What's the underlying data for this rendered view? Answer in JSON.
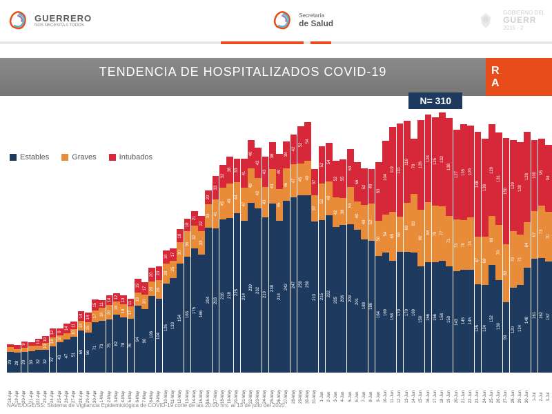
{
  "header": {
    "guerrero_name": "GUERRERO",
    "guerrero_tag": "NOS NECESITA A TODOS",
    "salud_small": "Secretaría",
    "salud_big": "de Salud",
    "gov_small": "GOBIERNO DEL",
    "gov_big": "GUERR",
    "gov_years": "2015 - 2"
  },
  "title": "TENDENCIA DE HOSPITALIZADOS COVID-19",
  "side_label_1": "R",
  "side_label_2": "A",
  "n_label": "N= 310",
  "legend": {
    "estables": "Estables",
    "graves": "Graves",
    "intubados": "Intubados"
  },
  "colors": {
    "estables": "#1e3a5f",
    "graves": "#e88c3a",
    "intubados": "#d62839",
    "title_bg": "#808080",
    "accent": "#e84c1a",
    "badge": "#1e3a5f"
  },
  "chart": {
    "max_total": 360,
    "dates": [
      "18-Apr",
      "19-Apr",
      "20-Apr",
      "21-Apr",
      "22-Apr",
      "23-Apr",
      "24-Apr",
      "25-Apr",
      "26-Apr",
      "27-Apr",
      "28-Apr",
      "29-Apr",
      "30-Apr",
      "1-May",
      "2-May",
      "3-May",
      "4-May",
      "5-May",
      "6-May",
      "7-May",
      "8-May",
      "9-May",
      "10-May",
      "11-May",
      "12-May",
      "13-May",
      "14-May",
      "15-May",
      "16-May",
      "17-May",
      "18-May",
      "19-May",
      "20-May",
      "21-May",
      "22-May",
      "23-May",
      "24-May",
      "25-May",
      "26-May",
      "27-May",
      "28-May",
      "29-May",
      "30-May",
      "31-May",
      "1-Jun",
      "2-Jun",
      "3-Jun",
      "4-Jun",
      "5-Jun",
      "6-Jun",
      "7-Jun",
      "8-Jun",
      "9-Jun",
      "10-Jun",
      "11-Jun",
      "12-Jun",
      "13-Jun",
      "14-Jun",
      "15-Jun",
      "16-Jun",
      "17-Jun",
      "18-Jun",
      "19-Jun",
      "20-Jun",
      "21-Jun",
      "22-Jun",
      "23-Jun",
      "24-Jun",
      "25-Jun",
      "26-Jun",
      "27-Jun",
      "28-Jun",
      "29-Jun",
      "30-Jun",
      "1-Jul",
      "2-Jul",
      "3-Jul"
    ],
    "estables": [
      29,
      28,
      29,
      30,
      32,
      32,
      37,
      43,
      47,
      51,
      59,
      56,
      71,
      73,
      75,
      82,
      78,
      76,
      94,
      90,
      108,
      104,
      126,
      133,
      154,
      163,
      175,
      166,
      204,
      203,
      216,
      218,
      225,
      214,
      239,
      232,
      219,
      238,
      214,
      242,
      247,
      250,
      250,
      213,
      215,
      222,
      205,
      208,
      209,
      201,
      188,
      186,
      164,
      169,
      158,
      170,
      170,
      169,
      150,
      156,
      156,
      158,
      150,
      143,
      145,
      145,
      125,
      124,
      152,
      130,
      99,
      120,
      124,
      148,
      161,
      162,
      157
    ],
    "graves": [
      7,
      5,
      6,
      8,
      6,
      10,
      13,
      10,
      8,
      10,
      14,
      15,
      17,
      18,
      20,
      18,
      18,
      17,
      19,
      20,
      20,
      26,
      28,
      25,
      30,
      36,
      32,
      33,
      33,
      41,
      45,
      49,
      44,
      47,
      49,
      42,
      43,
      49,
      45,
      46,
      47,
      45,
      49,
      37,
      52,
      48,
      42,
      38,
      53,
      40,
      48,
      52,
      50,
      54,
      69,
      50,
      69,
      83,
      80,
      84,
      79,
      77,
      71,
      73,
      70,
      74,
      67,
      68,
      69,
      78,
      82,
      79,
      71,
      64,
      67,
      73,
      70
    ],
    "intubados": [
      4,
      6,
      9,
      5,
      10,
      10,
      12,
      9,
      14,
      11,
      14,
      14,
      15,
      11,
      14,
      12,
      13,
      11,
      19,
      17,
      20,
      20,
      18,
      17,
      18,
      18,
      21,
      22,
      20,
      33,
      32,
      38,
      33,
      41,
      40,
      43,
      43,
      38,
      49,
      38,
      42,
      52,
      54,
      37,
      52,
      54,
      52,
      55,
      53,
      56,
      52,
      49,
      83,
      104,
      119,
      131,
      116,
      78,
      126,
      124,
      125,
      132,
      138,
      127,
      135,
      129,
      148,
      138,
      129,
      131,
      150,
      129,
      130,
      128,
      100,
      95,
      94
    ]
  },
  "source": "NAVE/DGE/SS: Sistema de Vigilancia Epidemiológica de COVID-19 corte de las 20:00 hrs. al 13 de julio del 2020."
}
